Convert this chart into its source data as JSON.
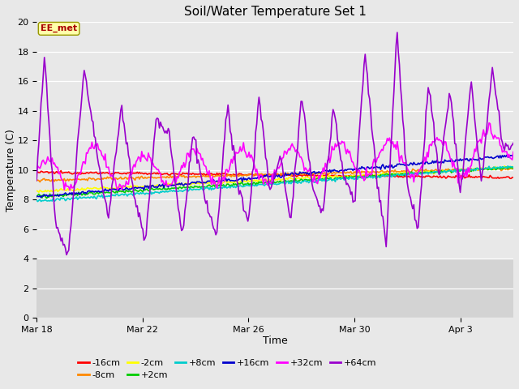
{
  "title": "Soil/Water Temperature Set 1",
  "xlabel": "Time",
  "ylabel": "Temperature (C)",
  "ylim": [
    0,
    20
  ],
  "x_tick_labels": [
    "Mar 18",
    "Mar 22",
    "Mar 26",
    "Mar 30",
    "Apr 3"
  ],
  "x_tick_positions": [
    0,
    4,
    8,
    12,
    16
  ],
  "fig_bg_color": "#e8e8e8",
  "plot_bg_color": "#d3d3d3",
  "inner_bg_color": "#e8e8e8",
  "title_fontsize": 11,
  "label_fontsize": 9,
  "tick_fontsize": 8,
  "series_order": [
    "-16cm",
    "-8cm",
    "-2cm",
    "+2cm",
    "+8cm",
    "+16cm",
    "+32cm",
    "+64cm"
  ],
  "series_colors": {
    "-16cm": "#ff0000",
    "-8cm": "#ff8800",
    "-2cm": "#ffff00",
    "+2cm": "#00cc00",
    "+8cm": "#00cccc",
    "+16cm": "#0000cc",
    "+32cm": "#ff00ff",
    "+64cm": "#9900cc"
  },
  "ee_met_label": "EE_met",
  "ee_met_color": "#aa0000",
  "ee_met_bg": "#ffffaa",
  "ee_met_edge": "#999900"
}
